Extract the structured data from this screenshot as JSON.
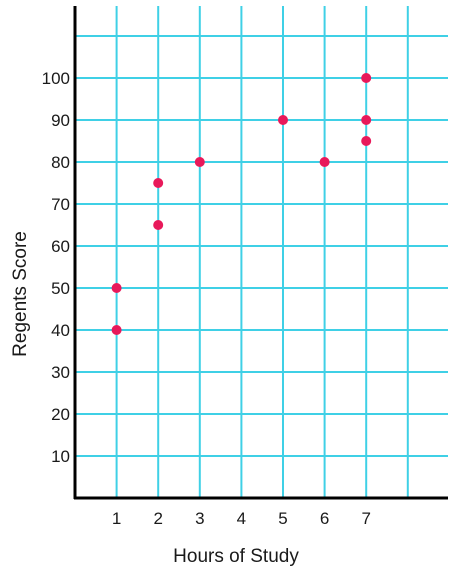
{
  "chart_data": {
    "type": "scatter",
    "title": "",
    "xlabel": "Hours of Study",
    "ylabel": "Regents Score",
    "x_ticks": [
      1,
      2,
      3,
      4,
      5,
      6,
      7
    ],
    "y_ticks": [
      10,
      20,
      30,
      40,
      50,
      60,
      70,
      80,
      90,
      100
    ],
    "xlim": [
      0,
      9
    ],
    "ylim": [
      0,
      110
    ],
    "grid": true,
    "legend": "none",
    "series": [
      {
        "points": [
          {
            "x": 1,
            "y": 50
          },
          {
            "x": 1,
            "y": 40
          },
          {
            "x": 2,
            "y": 75
          },
          {
            "x": 2,
            "y": 65
          },
          {
            "x": 3,
            "y": 80
          },
          {
            "x": 5,
            "y": 90
          },
          {
            "x": 6,
            "y": 80
          },
          {
            "x": 7,
            "y": 100
          },
          {
            "x": 7,
            "y": 90
          },
          {
            "x": 7,
            "y": 85
          }
        ]
      }
    ],
    "colors": {
      "grid": "#3fd0e6",
      "axis": "#000000",
      "point": "#e8195a"
    }
  }
}
